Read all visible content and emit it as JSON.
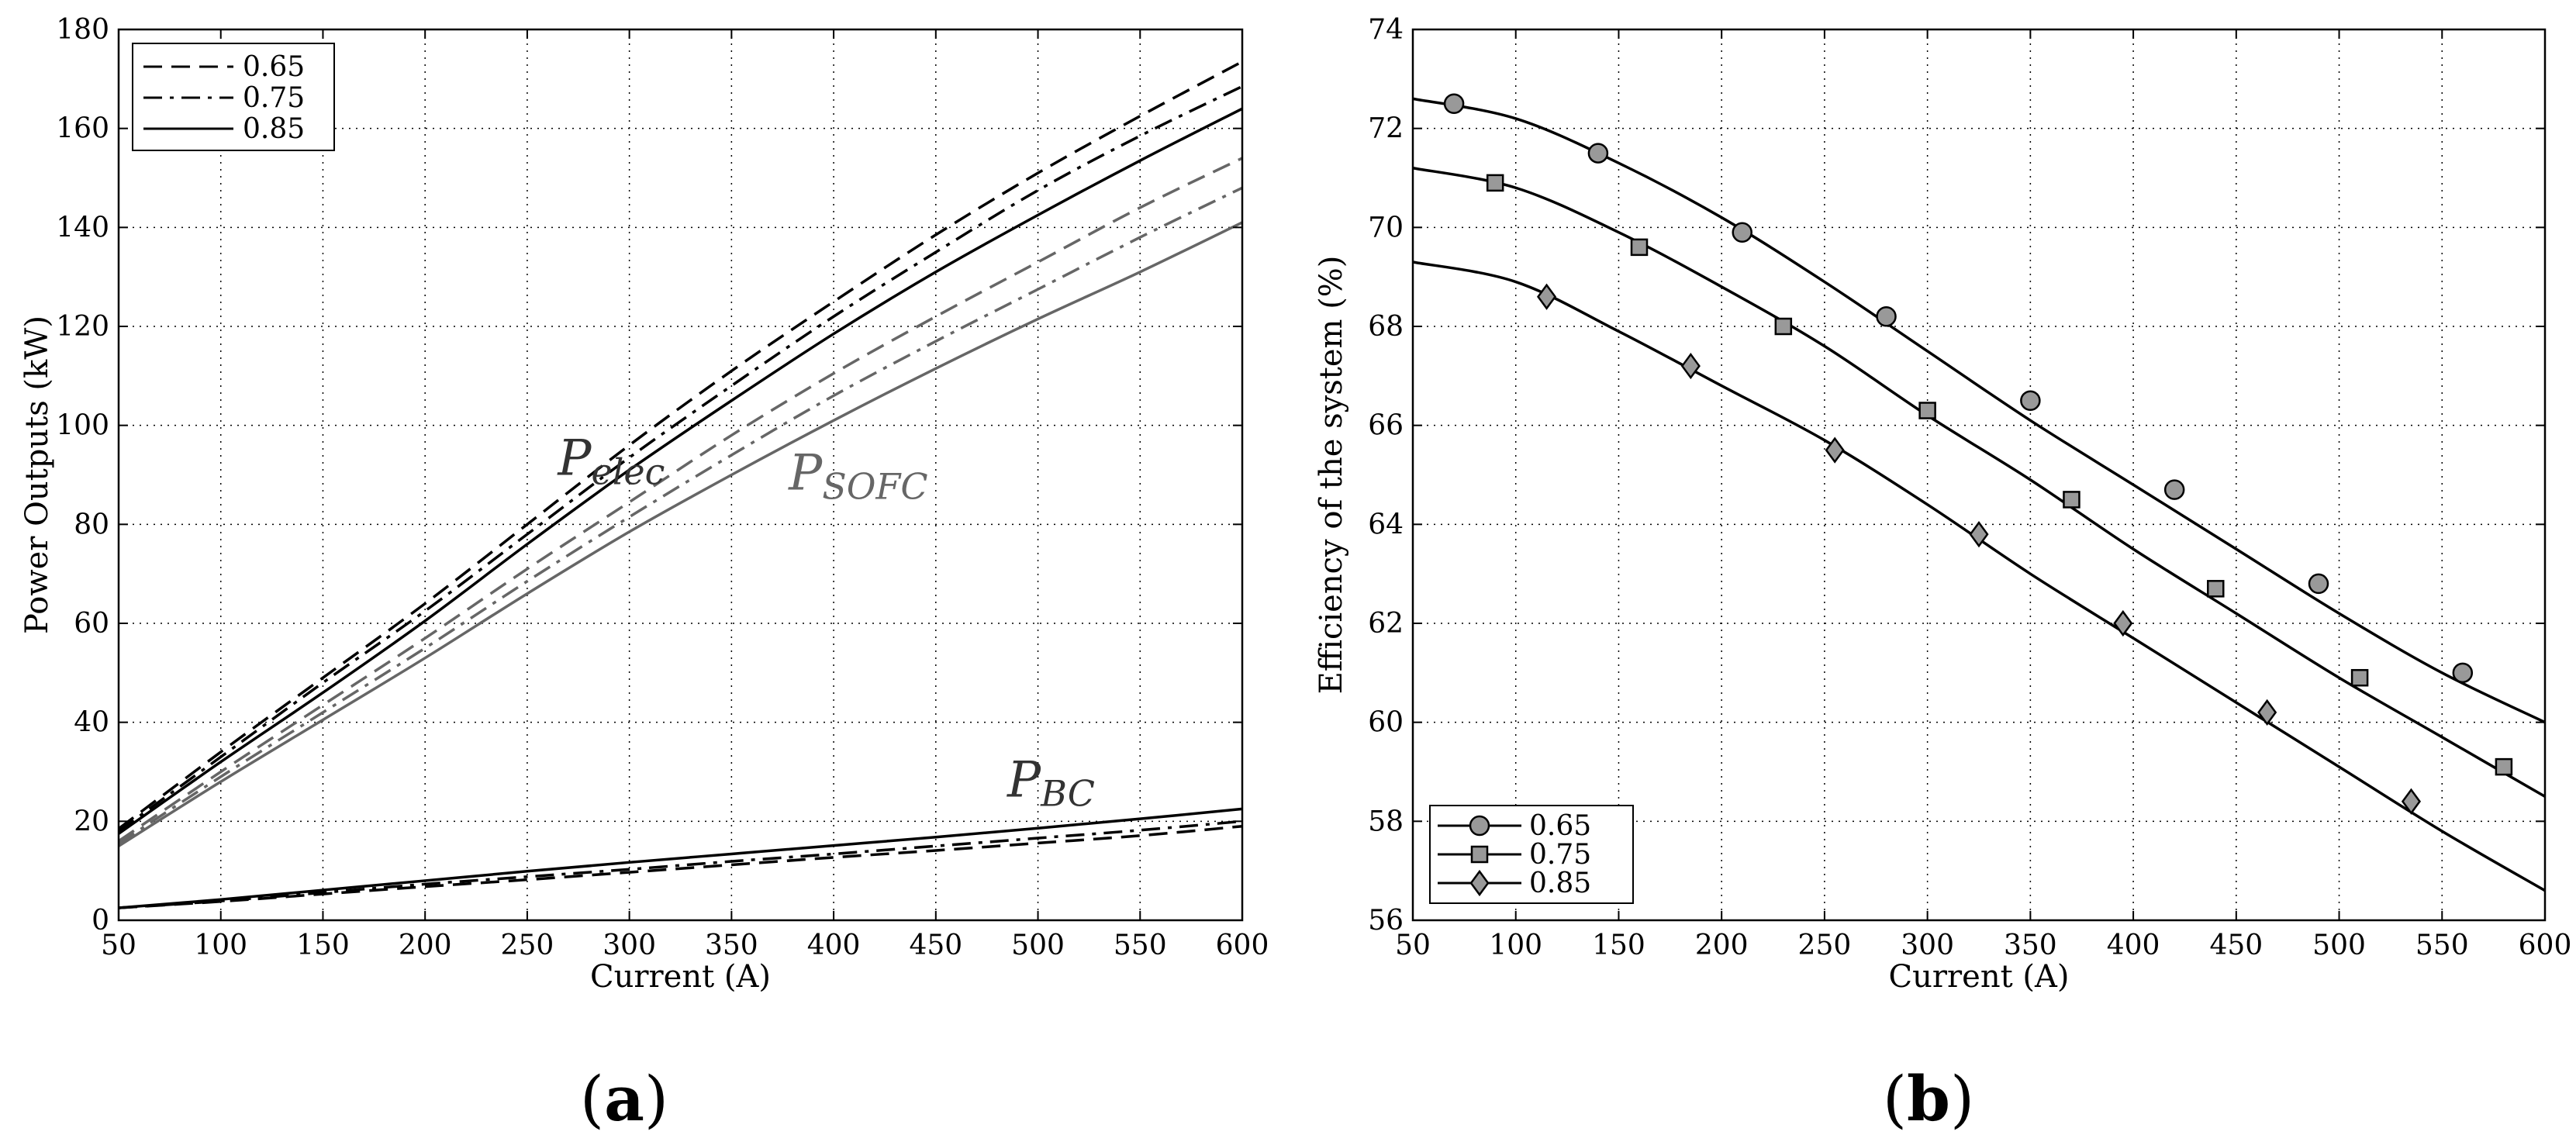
{
  "captions": {
    "a_open": "(",
    "a_letter": "a",
    "a_close": ")",
    "b_open": "(",
    "b_letter": "b",
    "b_close": ")"
  },
  "chart_data": [
    {
      "type": "line",
      "xlabel": "Current (A)",
      "ylabel": "Power Outputs (kW)",
      "xlim": [
        50,
        600
      ],
      "ylim": [
        0,
        180
      ],
      "xticks": [
        50,
        100,
        150,
        200,
        250,
        300,
        350,
        400,
        450,
        500,
        550,
        600
      ],
      "yticks": [
        0,
        20,
        40,
        60,
        80,
        100,
        120,
        140,
        160,
        180
      ],
      "grid": true,
      "legend": {
        "placement": "top-left",
        "entries": [
          {
            "label": "0.65",
            "dash": "dashed"
          },
          {
            "label": "0.75",
            "dash": "dashdot"
          },
          {
            "label": "0.85",
            "dash": "solid"
          }
        ]
      },
      "annotations": [
        {
          "main": "P",
          "sub": "elec",
          "color": "#333333",
          "at": [
            265,
            90
          ]
        },
        {
          "main": "P",
          "sub": "SOFC",
          "color": "#666666",
          "at": [
            378,
            87
          ]
        },
        {
          "main": "P",
          "sub": "BC",
          "color": "#333333",
          "at": [
            485,
            25
          ]
        }
      ],
      "x": [
        50,
        100,
        150,
        200,
        250,
        300,
        350,
        400,
        450,
        500,
        550,
        600
      ],
      "series": [
        {
          "group": "P_elec",
          "name": "0.65",
          "dash": "dashed",
          "color": "#000000",
          "values": [
            18.5,
            34,
            49,
            64,
            80,
            96,
            111,
            125,
            138.5,
            151,
            162.5,
            173.5
          ]
        },
        {
          "group": "P_elec",
          "name": "0.75",
          "dash": "dashdot",
          "color": "#000000",
          "values": [
            18,
            33,
            48,
            62.5,
            78,
            93.5,
            108,
            122,
            135,
            147.5,
            158.5,
            168.5
          ]
        },
        {
          "group": "P_elec",
          "name": "0.85",
          "dash": "solid",
          "color": "#000000",
          "values": [
            17.5,
            32,
            46,
            60.5,
            76,
            91,
            105,
            118.5,
            131,
            142.5,
            153.5,
            164
          ]
        },
        {
          "group": "P_SOFC",
          "name": "0.65",
          "dash": "dashed",
          "color": "#666666",
          "values": [
            16,
            30,
            43.5,
            57,
            71,
            84.5,
            98,
            110.5,
            122,
            133,
            144,
            154
          ]
        },
        {
          "group": "P_SOFC",
          "name": "0.75",
          "dash": "dashdot",
          "color": "#666666",
          "values": [
            15.5,
            29,
            42,
            55,
            68.5,
            81.5,
            94,
            106,
            117,
            127.5,
            138,
            148
          ]
        },
        {
          "group": "P_SOFC",
          "name": "0.85",
          "dash": "solid",
          "color": "#666666",
          "values": [
            15,
            28,
            40.5,
            53,
            66,
            78.5,
            90,
            101,
            111.5,
            121.5,
            131,
            141
          ]
        },
        {
          "group": "P_BC",
          "name": "0.65",
          "dash": "dashed",
          "color": "#000000",
          "values": [
            2.5,
            3.8,
            5.3,
            6.8,
            8.2,
            9.7,
            11.2,
            12.7,
            14.1,
            15.6,
            17.1,
            19
          ]
        },
        {
          "group": "P_BC",
          "name": "0.75",
          "dash": "dashdot",
          "color": "#000000",
          "values": [
            2.5,
            3.9,
            5.6,
            7.3,
            8.8,
            10.3,
            11.9,
            13.4,
            15,
            16.6,
            18.2,
            20
          ]
        },
        {
          "group": "P_BC",
          "name": "0.85",
          "dash": "solid",
          "color": "#000000",
          "values": [
            2.5,
            4.2,
            6.1,
            8,
            9.9,
            11.7,
            13.4,
            15.1,
            16.8,
            18.6,
            20.5,
            22.5
          ]
        }
      ]
    },
    {
      "type": "line",
      "xlabel": "Current (A)",
      "ylabel": "Efficiency of the system (%)",
      "xlim": [
        50,
        600
      ],
      "ylim": [
        56,
        74
      ],
      "xticks": [
        50,
        100,
        150,
        200,
        250,
        300,
        350,
        400,
        450,
        500,
        550,
        600
      ],
      "yticks": [
        56,
        58,
        60,
        62,
        64,
        66,
        68,
        70,
        72,
        74
      ],
      "grid": true,
      "legend": {
        "placement": "bottom-left",
        "entries": [
          {
            "label": "0.65",
            "marker": "circle"
          },
          {
            "label": "0.75",
            "marker": "square"
          },
          {
            "label": "0.85",
            "marker": "diamond"
          }
        ]
      },
      "series": [
        {
          "name": "0.65",
          "marker": "circle",
          "color": "#000000",
          "x": [
            50,
            100,
            150,
            200,
            250,
            300,
            350,
            400,
            450,
            500,
            550,
            600
          ],
          "values": [
            72.6,
            72.2,
            71.3,
            70.2,
            68.9,
            67.5,
            66.1,
            64.8,
            63.5,
            62.2,
            61.0,
            60.0
          ],
          "markers_x": [
            70,
            140,
            210,
            280,
            350,
            420,
            490,
            560
          ],
          "markers_y": [
            72.5,
            71.5,
            69.9,
            68.2,
            66.5,
            64.7,
            62.8,
            61.0
          ]
        },
        {
          "name": "0.75",
          "marker": "square",
          "color": "#000000",
          "x": [
            50,
            100,
            150,
            200,
            250,
            300,
            350,
            400,
            450,
            500,
            550,
            600
          ],
          "values": [
            71.2,
            70.8,
            69.9,
            68.8,
            67.6,
            66.2,
            64.9,
            63.5,
            62.2,
            60.9,
            59.7,
            58.5
          ],
          "markers_x": [
            90,
            160,
            230,
            300,
            370,
            440,
            510,
            580
          ],
          "markers_y": [
            70.9,
            69.6,
            68.0,
            66.3,
            64.5,
            62.7,
            60.9,
            59.1
          ]
        },
        {
          "name": "0.85",
          "marker": "diamond",
          "color": "#000000",
          "x": [
            50,
            100,
            150,
            200,
            250,
            300,
            350,
            400,
            450,
            500,
            550,
            600
          ],
          "values": [
            69.3,
            68.9,
            67.9,
            66.8,
            65.7,
            64.4,
            63.0,
            61.7,
            60.4,
            59.1,
            57.8,
            56.6
          ],
          "markers_x": [
            115,
            185,
            255,
            325,
            395,
            465,
            535
          ],
          "markers_y": [
            68.6,
            67.2,
            65.5,
            63.8,
            62.0,
            60.2,
            58.4
          ]
        }
      ]
    }
  ]
}
